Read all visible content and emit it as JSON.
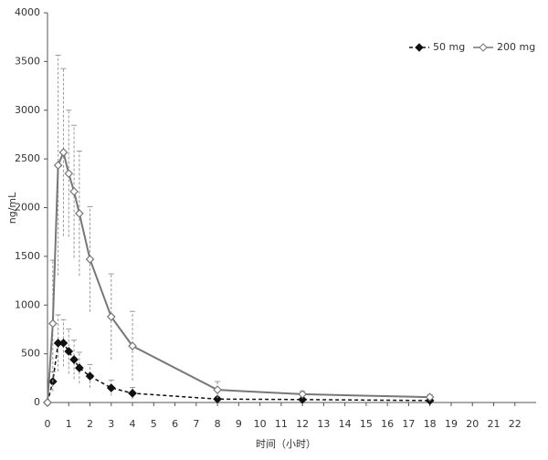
{
  "chart_data": {
    "type": "line",
    "y_label": "ng/mL",
    "x_label": "时间（小时）",
    "x": [
      0,
      0.25,
      0.5,
      0.75,
      1,
      1.25,
      1.5,
      2,
      3,
      4,
      8,
      12,
      18
    ],
    "xlim": [
      0,
      23
    ],
    "xticks": [
      0,
      1,
      2,
      3,
      4,
      5,
      6,
      7,
      8,
      9,
      10,
      11,
      12,
      13,
      14,
      15,
      16,
      17,
      18,
      19,
      20,
      21,
      22
    ],
    "ylim": [
      0,
      4000
    ],
    "yticks": [
      0,
      500,
      1000,
      1500,
      2000,
      2500,
      3000,
      3500,
      4000
    ],
    "grid": false,
    "legend": "upper right",
    "series": [
      {
        "name": "50 mg",
        "color": "#111111",
        "marker": "filled",
        "dashed": true,
        "values": [
          0,
          215,
          610,
          610,
          525,
          440,
          355,
          270,
          150,
          95,
          35,
          30,
          20
        ],
        "error": [
          0,
          100,
          290,
          240,
          230,
          200,
          160,
          120,
          80,
          60,
          20,
          15,
          10
        ]
      },
      {
        "name": "200 mg",
        "color": "#777777",
        "marker": "open",
        "dashed": false,
        "values": [
          0,
          810,
          2435,
          2567,
          2350,
          2165,
          1940,
          1470,
          880,
          580,
          130,
          85,
          55
        ],
        "error": [
          0,
          650,
          1130,
          860,
          650,
          680,
          640,
          540,
          440,
          355,
          85,
          30,
          25
        ]
      }
    ]
  }
}
